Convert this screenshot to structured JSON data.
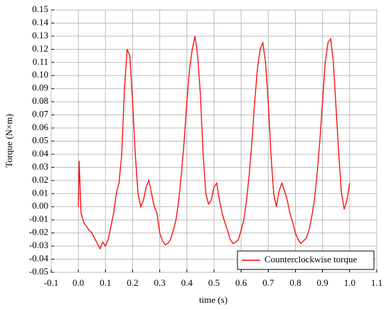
{
  "chart_data": {
    "type": "line",
    "xlabel": "time (s)",
    "ylabel": "Torque (N×m)",
    "x": [
      0,
      0.003,
      0.01,
      0.02,
      0.03,
      0.04,
      0.05,
      0.06,
      0.07,
      0.08,
      0.09,
      0.1,
      0.11,
      0.12,
      0.13,
      0.14,
      0.15,
      0.16,
      0.17,
      0.18,
      0.19,
      0.2,
      0.21,
      0.22,
      0.23,
      0.24,
      0.25,
      0.26,
      0.27,
      0.28,
      0.29,
      0.3,
      0.31,
      0.32,
      0.33,
      0.34,
      0.35,
      0.36,
      0.37,
      0.38,
      0.39,
      0.4,
      0.41,
      0.42,
      0.43,
      0.44,
      0.45,
      0.46,
      0.47,
      0.48,
      0.49,
      0.5,
      0.51,
      0.52,
      0.53,
      0.54,
      0.55,
      0.56,
      0.57,
      0.58,
      0.59,
      0.6,
      0.61,
      0.62,
      0.63,
      0.64,
      0.65,
      0.66,
      0.67,
      0.68,
      0.69,
      0.7,
      0.71,
      0.72,
      0.73,
      0.74,
      0.75,
      0.76,
      0.77,
      0.78,
      0.79,
      0.8,
      0.81,
      0.82,
      0.83,
      0.84,
      0.85,
      0.86,
      0.87,
      0.88,
      0.89,
      0.9,
      0.91,
      0.92,
      0.93,
      0.94,
      0.95,
      0.96,
      0.97,
      0.98,
      0.99,
      1.0
    ],
    "series": [
      {
        "name": "Counterclockwise torque",
        "color": "#ff0000",
        "values": [
          0.0,
          0.035,
          -0.005,
          -0.012,
          -0.015,
          -0.018,
          -0.02,
          -0.024,
          -0.028,
          -0.032,
          -0.027,
          -0.03,
          -0.025,
          -0.015,
          -0.005,
          0.01,
          0.018,
          0.04,
          0.09,
          0.12,
          0.115,
          0.08,
          0.04,
          0.01,
          0.0,
          0.005,
          0.015,
          0.02,
          0.01,
          0.0,
          -0.005,
          -0.02,
          -0.026,
          -0.029,
          -0.028,
          -0.025,
          -0.018,
          -0.01,
          0.005,
          0.025,
          0.05,
          0.08,
          0.105,
          0.12,
          0.13,
          0.115,
          0.085,
          0.04,
          0.01,
          0.002,
          0.005,
          0.015,
          0.018,
          0.005,
          -0.005,
          -0.012,
          -0.018,
          -0.025,
          -0.028,
          -0.027,
          -0.025,
          -0.018,
          -0.01,
          0.005,
          0.025,
          0.05,
          0.08,
          0.105,
          0.12,
          0.125,
          0.11,
          0.08,
          0.04,
          0.01,
          0.0,
          0.012,
          0.018,
          0.012,
          0.005,
          -0.005,
          -0.012,
          -0.02,
          -0.025,
          -0.028,
          -0.026,
          -0.024,
          -0.018,
          -0.008,
          0.005,
          0.025,
          0.05,
          0.08,
          0.11,
          0.125,
          0.128,
          0.11,
          0.075,
          0.04,
          0.01,
          -0.002,
          0.005,
          0.018
        ]
      }
    ],
    "xlim": [
      -0.1,
      1.1
    ],
    "xticks": [
      -0.1,
      {
        "value": 0,
        "label": "0.0"
      },
      0.1,
      0.2,
      0.3,
      0.4,
      0.5,
      0.6,
      0.7,
      0.8,
      0.9,
      {
        "value": 1,
        "label": "1.0"
      },
      1.1
    ],
    "ylim": [
      -0.05,
      0.15
    ],
    "yticks": [
      -0.05,
      -0.04,
      -0.03,
      -0.02,
      -0.01,
      {
        "value": 0,
        "label": "0.00"
      },
      0.01,
      0.02,
      0.03,
      0.04,
      0.05,
      0.06,
      0.07,
      0.08,
      0.09,
      {
        "value": 0.1,
        "label": "0.10"
      },
      0.11,
      0.12,
      0.13,
      0.14,
      0.15
    ],
    "grid": true,
    "legend": "lower right"
  }
}
